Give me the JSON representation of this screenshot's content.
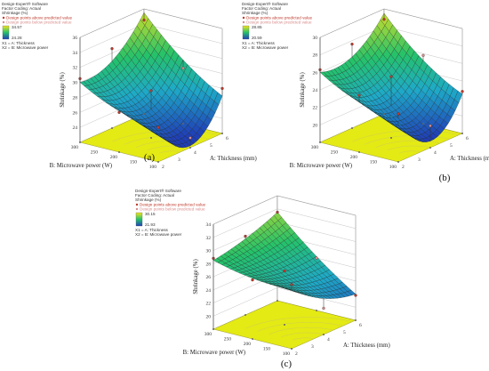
{
  "legend": {
    "software": "Design-Expert® Software",
    "coding": "Factor Coding: Actual",
    "response": "Shrinkage (%)",
    "above": "Design points above predicted value",
    "below": "Design points below predicted value",
    "x1": "X1 = A: Thickness",
    "x2": "X2 = B: Microwave power"
  },
  "colors": {
    "low": "#1f3fb8",
    "mid": "#25c26a",
    "high": "#f2e41c",
    "floor": "#e4ea14",
    "wall": "#ffffff",
    "grid": "#777777",
    "points_above": "#c0392b",
    "points_below": "#d98c8c"
  },
  "chart_data": [
    {
      "type": "surface3d",
      "panel_label": "(a)",
      "zlabel": "Shrinkage (%)",
      "xlabel": "A: Thickness (mm)",
      "ylabel": "B: Microwave power (W)",
      "x_ticks": [
        "2",
        "3",
        "4",
        "5",
        "6"
      ],
      "y_ticks": [
        "100",
        "150",
        "200",
        "250",
        "300"
      ],
      "z_ticks": [
        "24",
        "26",
        "28",
        "30",
        "32",
        "34",
        "36"
      ],
      "xlim": [
        2,
        6
      ],
      "ylim": [
        100,
        300
      ],
      "zlim": [
        22,
        36
      ],
      "legend_high": "34.57",
      "legend_low": "24.28",
      "surface": {
        "z_x2_y100": 26.5,
        "z_x6_y100": 27.0,
        "z_x2_y300": 30.0,
        "z_x6_y300": 35.5,
        "xx": 4.5,
        "yy": 1.5
      },
      "points": [
        {
          "x": 2,
          "y": 100,
          "z": 26.6,
          "above": true
        },
        {
          "x": 4,
          "y": 100,
          "z": 23.3,
          "above": false
        },
        {
          "x": 6,
          "y": 100,
          "z": 28.0,
          "above": true
        },
        {
          "x": 2,
          "y": 200,
          "z": 27.3,
          "above": true
        },
        {
          "x": 4,
          "y": 200,
          "z": 28.3,
          "above": true
        },
        {
          "x": 6,
          "y": 200,
          "z": 29.4,
          "above": false
        },
        {
          "x": 2,
          "y": 300,
          "z": 30.5,
          "above": true
        },
        {
          "x": 4,
          "y": 300,
          "z": 32.6,
          "above": true
        },
        {
          "x": 6,
          "y": 300,
          "z": 34.5,
          "above": true
        }
      ]
    },
    {
      "type": "surface3d",
      "panel_label": "(b)",
      "zlabel": "Shrinkage (%)",
      "xlabel": "A: Thickness (mm)",
      "ylabel": "B: Microwave power (W)",
      "x_ticks": [
        "2",
        "3",
        "4",
        "5",
        "6"
      ],
      "y_ticks": [
        "100",
        "150",
        "200",
        "250",
        "300"
      ],
      "z_ticks": [
        "20",
        "22",
        "24",
        "26",
        "28",
        "30"
      ],
      "xlim": [
        2,
        6
      ],
      "ylim": [
        100,
        300
      ],
      "zlim": [
        18,
        30
      ],
      "legend_high": "28.85",
      "legend_low": "20.59",
      "surface": {
        "z_x2_y100": 23.0,
        "z_x6_y100": 22.5,
        "z_x2_y300": 26.0,
        "z_x6_y300": 29.5,
        "xx": 4.0,
        "yy": 1.5
      },
      "points": [
        {
          "x": 2,
          "y": 100,
          "z": 23.5,
          "above": true
        },
        {
          "x": 4,
          "y": 100,
          "z": 20.5,
          "above": false
        },
        {
          "x": 6,
          "y": 100,
          "z": 22.8,
          "above": true
        },
        {
          "x": 2,
          "y": 200,
          "z": 24.5,
          "above": true
        },
        {
          "x": 4,
          "y": 200,
          "z": 25.0,
          "above": true
        },
        {
          "x": 6,
          "y": 200,
          "z": 25.8,
          "above": false
        },
        {
          "x": 2,
          "y": 300,
          "z": 26.3,
          "above": true
        },
        {
          "x": 4,
          "y": 300,
          "z": 27.6,
          "above": true
        },
        {
          "x": 6,
          "y": 300,
          "z": 28.8,
          "above": true
        }
      ]
    },
    {
      "type": "surface3d",
      "panel_label": "(c)",
      "zlabel": "Shrinkage (%)",
      "xlabel": "A: Thickness (mm)",
      "ylabel": "B: Microwave power (W)",
      "x_ticks": [
        "2",
        "3",
        "4",
        "5",
        "6"
      ],
      "y_ticks": [
        "100",
        "150",
        "200",
        "250",
        "300"
      ],
      "z_ticks": [
        "20",
        "22",
        "24",
        "26",
        "28",
        "30",
        "32",
        "34"
      ],
      "xlim": [
        2,
        6
      ],
      "ylim": [
        100,
        300
      ],
      "zlim": [
        18,
        34
      ],
      "legend_high": "30.15",
      "legend_low": "21.93",
      "surface": {
        "z_x2_y100": 27.0,
        "z_x6_y100": 22.0,
        "z_x2_y300": 28.5,
        "z_x6_y300": 31.5,
        "xx": 1.0,
        "yy": 1.0
      },
      "points": [
        {
          "x": 2,
          "y": 100,
          "z": 27.8,
          "above": true
        },
        {
          "x": 4,
          "y": 100,
          "z": 22.0,
          "above": false
        },
        {
          "x": 6,
          "y": 100,
          "z": 21.8,
          "above": true
        },
        {
          "x": 2,
          "y": 200,
          "z": 27.0,
          "above": true
        },
        {
          "x": 4,
          "y": 200,
          "z": 26.2,
          "above": true
        },
        {
          "x": 6,
          "y": 200,
          "z": 26.0,
          "above": false
        },
        {
          "x": 2,
          "y": 300,
          "z": 28.8,
          "above": true
        },
        {
          "x": 4,
          "y": 300,
          "z": 30.0,
          "above": true
        },
        {
          "x": 6,
          "y": 300,
          "z": 31.5,
          "above": true
        }
      ]
    }
  ]
}
